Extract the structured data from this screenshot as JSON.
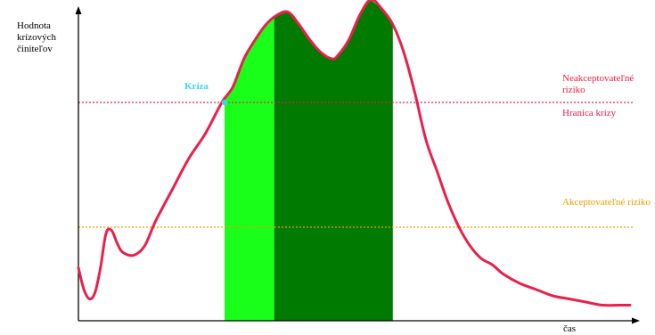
{
  "colors": {
    "curve": "#e8204c",
    "boundary_line": "#e8204c",
    "acceptable_line": "#e8a000",
    "band_light": "#1aff1a",
    "band_dark": "#007a00",
    "crisis_point": "#3fd4e4",
    "axis": "#000000"
  },
  "chart_data": {
    "type": "line",
    "title": "",
    "xlabel": "čas",
    "ylabel": "Hodnota krízových činiteľov",
    "xlim": [
      0,
      100
    ],
    "ylim": [
      0,
      100
    ],
    "grid": false,
    "legend": "none",
    "series": [
      {
        "name": "",
        "x": [
          0,
          1,
          2,
          3,
          4,
          5,
          6,
          7,
          8,
          10,
          12,
          14,
          17,
          20,
          23,
          26,
          28,
          30,
          32,
          34,
          36,
          38,
          40,
          42,
          44,
          46,
          47,
          49,
          51,
          53,
          55,
          57,
          59,
          61,
          63,
          65,
          67,
          69,
          71,
          73,
          75,
          77,
          80,
          83,
          86,
          89,
          92,
          95,
          98,
          100
        ],
        "y": [
          17,
          10,
          7,
          9,
          17,
          28,
          29,
          25,
          22,
          21,
          24,
          32,
          42,
          52,
          60,
          70,
          75,
          84,
          90,
          95,
          98,
          99,
          95,
          90,
          86,
          84,
          85,
          90,
          98,
          103,
          100,
          95,
          86,
          73,
          58,
          48,
          38,
          30,
          24,
          20,
          18,
          15,
          12,
          10,
          8,
          7,
          6,
          5,
          5,
          5
        ]
      }
    ],
    "crisis_point": {
      "x": 26.5,
      "y": 70,
      "label": "Kríza"
    },
    "reference_lines": [
      {
        "y": 70,
        "label_top": "Neakceptovateľné riziko",
        "label_bottom": "Hranica krízy"
      },
      {
        "y": 30,
        "label": "Akceptovateľné riziko"
      }
    ],
    "shaded_regions": [
      {
        "x_start": 26.5,
        "x_end": 35.5
      },
      {
        "x_start": 35.5,
        "x_end": 57
      }
    ]
  }
}
